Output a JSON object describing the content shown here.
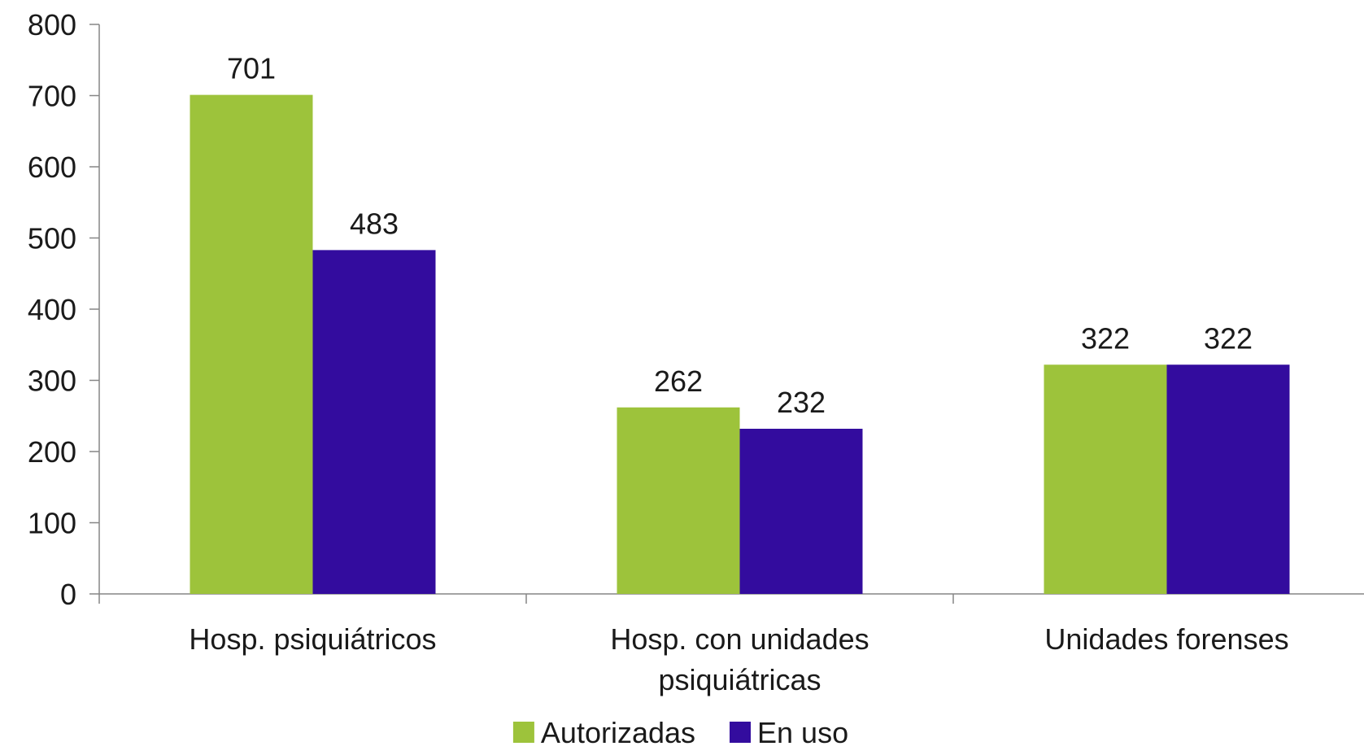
{
  "chart_data": {
    "type": "bar",
    "categories": [
      [
        "Hosp. psiquiátricos"
      ],
      [
        "Hosp. con unidades",
        "psiquiátricas"
      ],
      [
        "Unidades forenses"
      ]
    ],
    "series": [
      {
        "name": "Autorizadas",
        "color": "#9dc33b",
        "values": [
          701,
          262,
          322
        ]
      },
      {
        "name": "En uso",
        "color": "#330c9e",
        "values": [
          483,
          232,
          322
        ]
      }
    ],
    "ylim": [
      0,
      800
    ],
    "yticks": [
      0,
      100,
      200,
      300,
      400,
      500,
      600,
      700,
      800
    ],
    "grid": false,
    "legend": "bottom-center",
    "axis_color": "#868686"
  }
}
